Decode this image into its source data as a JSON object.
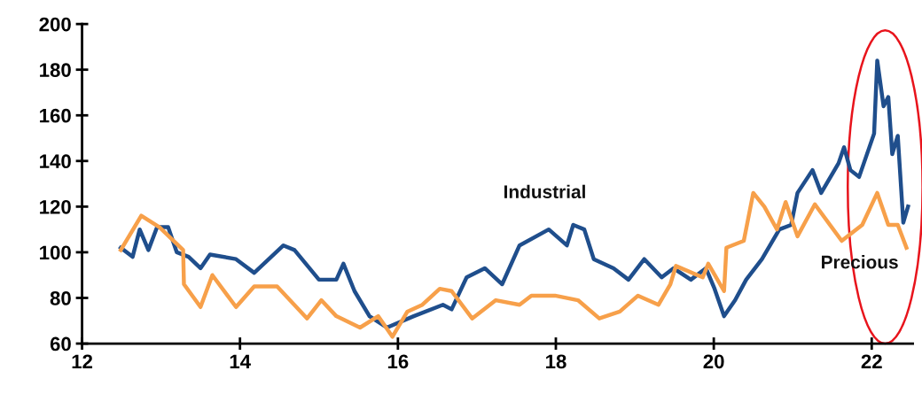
{
  "chart_data": {
    "type": "line",
    "xlim": [
      12,
      22.52
    ],
    "xticks": [
      12,
      14,
      16,
      18,
      20,
      22
    ],
    "ylim": [
      60,
      200
    ],
    "yticks": [
      60,
      80,
      100,
      120,
      140,
      160,
      180,
      200
    ],
    "grid": false,
    "legend": false,
    "series": [
      {
        "name": "Industrial",
        "color": "#1f4e8c",
        "x": [
          12.49,
          12.64,
          12.73,
          12.84,
          12.95,
          13.09,
          13.2,
          13.35,
          13.5,
          13.62,
          13.95,
          14.18,
          14.55,
          14.69,
          15.0,
          15.22,
          15.31,
          15.45,
          15.64,
          15.86,
          16.2,
          16.57,
          16.68,
          16.87,
          17.1,
          17.32,
          17.54,
          17.91,
          18.14,
          18.22,
          18.36,
          18.48,
          18.73,
          18.92,
          19.12,
          19.34,
          19.49,
          19.71,
          19.9,
          20.01,
          20.13,
          20.27,
          20.41,
          20.61,
          20.83,
          20.98,
          21.06,
          21.25,
          21.36,
          21.58,
          21.65,
          21.73,
          21.84,
          22.03,
          22.07,
          22.15,
          22.21,
          22.26,
          22.33,
          22.4,
          22.46
        ],
        "values": [
          102,
          98,
          110,
          101,
          111,
          111,
          100,
          98,
          93,
          99,
          97,
          91,
          103,
          101,
          88,
          88,
          95,
          83,
          72,
          67,
          72,
          77,
          75,
          89,
          93,
          86,
          103,
          110,
          103,
          112,
          110,
          97,
          93,
          88,
          97,
          89,
          93,
          88,
          93,
          84,
          72,
          79,
          88,
          97,
          110,
          112,
          126,
          136,
          126,
          139,
          146,
          136,
          133,
          152,
          184,
          164,
          168,
          143,
          151,
          113,
          120
        ]
      },
      {
        "name": "Precious",
        "color": "#f7a04a",
        "x": [
          12.49,
          12.75,
          12.98,
          13.28,
          13.29,
          13.5,
          13.65,
          13.95,
          14.18,
          14.47,
          14.85,
          15.03,
          15.22,
          15.52,
          15.75,
          15.93,
          16.12,
          16.31,
          16.53,
          16.68,
          16.94,
          17.24,
          17.54,
          17.69,
          17.99,
          18.28,
          18.55,
          18.81,
          19.04,
          19.3,
          19.45,
          19.52,
          19.86,
          19.93,
          20.13,
          20.16,
          20.38,
          20.5,
          20.64,
          20.8,
          20.91,
          21.06,
          21.28,
          21.62,
          21.88,
          22.07,
          22.21,
          22.33,
          22.44
        ],
        "values": [
          101,
          116,
          111,
          101,
          86,
          76,
          90,
          76,
          85,
          85,
          71,
          79,
          72,
          67,
          72,
          63,
          74,
          77,
          84,
          83,
          71,
          79,
          77,
          81,
          81,
          79,
          71,
          74,
          81,
          77,
          86,
          94,
          89,
          95,
          83,
          102,
          105,
          126,
          120,
          110,
          122,
          107,
          121,
          105,
          112,
          126,
          112,
          112,
          102
        ]
      }
    ]
  }
}
